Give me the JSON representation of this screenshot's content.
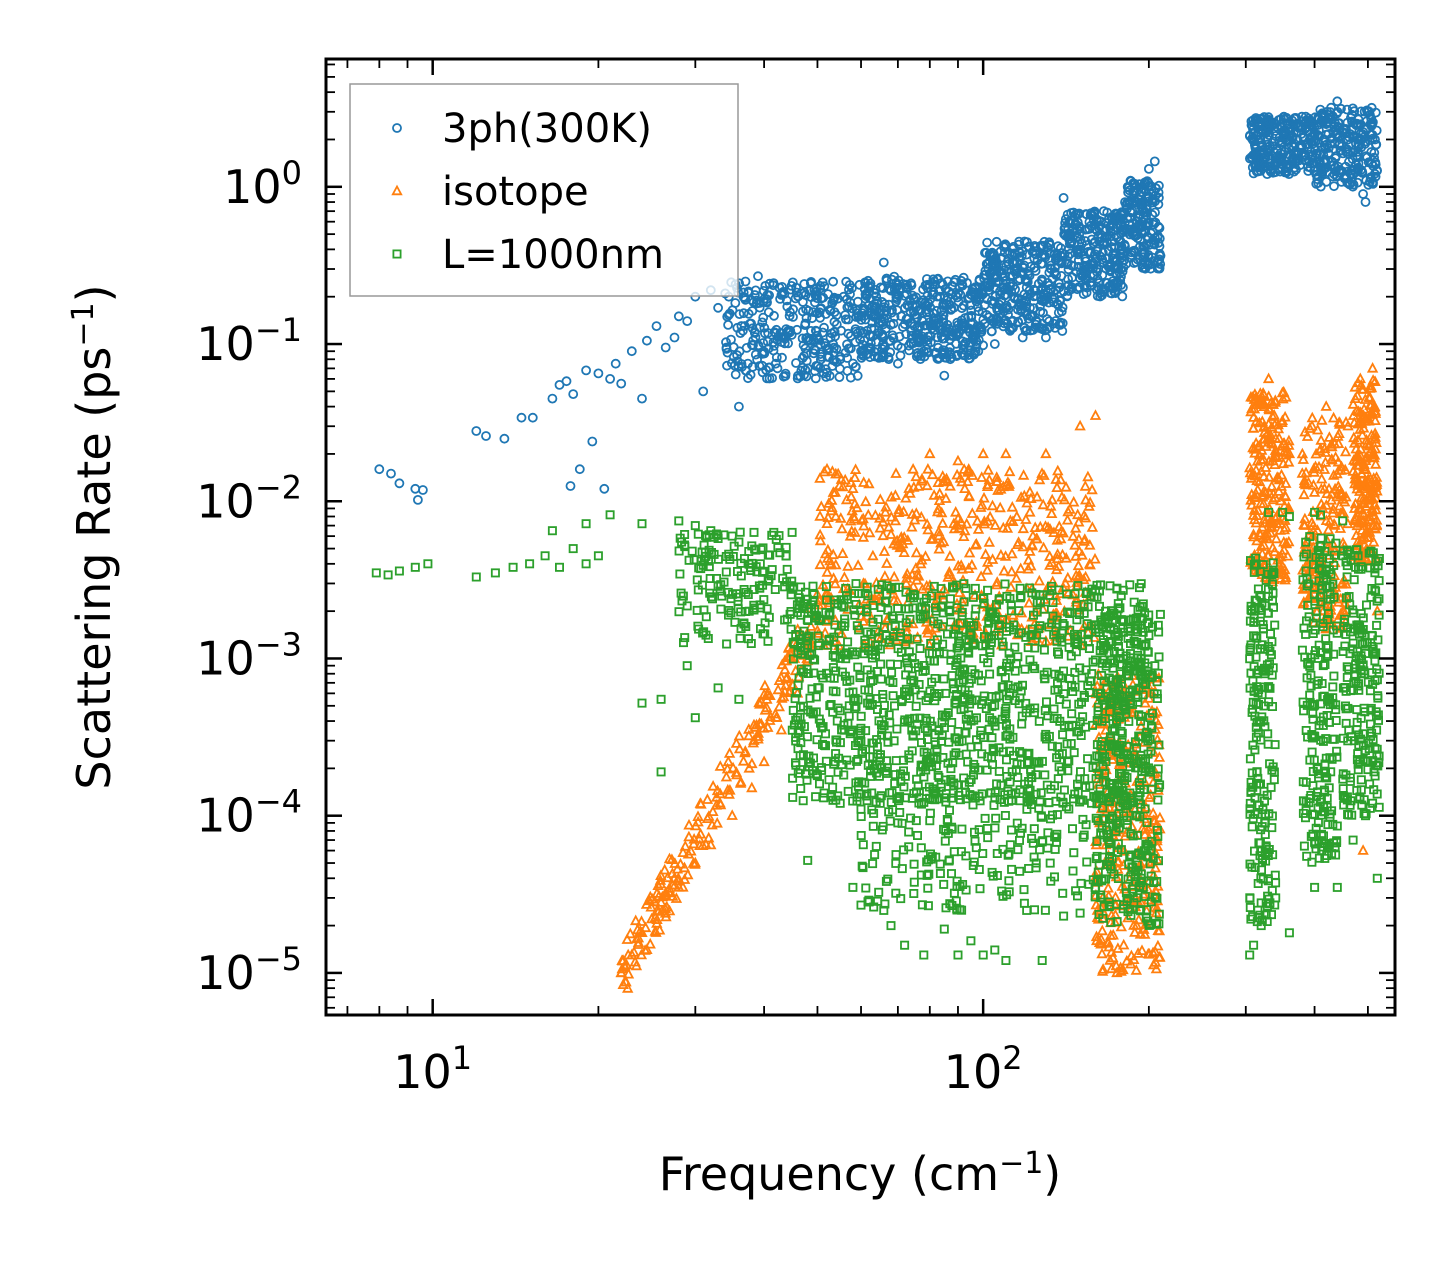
{
  "chart_data": {
    "type": "scatter",
    "title": "",
    "xlabel": {
      "main": "Frequency (cm",
      "sup": "−1",
      "end": ")"
    },
    "ylabel": {
      "main": "Scattering Rate (ps",
      "sup": "−1",
      "end": ")"
    },
    "xscale": "log",
    "yscale": "log",
    "xlim": [
      6.4,
      560
    ],
    "ylim": [
      5.4e-06,
      6.5
    ],
    "xticks": [
      {
        "value": 10,
        "base": "10",
        "exp": "1"
      },
      {
        "value": 100,
        "base": "10",
        "exp": "2"
      }
    ],
    "yticks": [
      {
        "value": 1,
        "base": "10",
        "exp": "0"
      },
      {
        "value": 0.1,
        "base": "10",
        "exp": "−1"
      },
      {
        "value": 0.01,
        "base": "10",
        "exp": "−2"
      },
      {
        "value": 0.001,
        "base": "10",
        "exp": "−3"
      },
      {
        "value": 0.0001,
        "base": "10",
        "exp": "−4"
      },
      {
        "value": 1e-05,
        "base": "10",
        "exp": "−5"
      }
    ],
    "legend_position": "top-left",
    "grid": false,
    "series": [
      {
        "name": "3ph(300K)",
        "marker": "circle",
        "color": "#1f77b4",
        "points": [
          [
            8.0,
            0.016
          ],
          [
            8.4,
            0.015
          ],
          [
            8.7,
            0.013
          ],
          [
            9.3,
            0.012
          ],
          [
            9.6,
            0.0118
          ],
          [
            9.4,
            0.0102
          ],
          [
            12.0,
            0.028
          ],
          [
            12.5,
            0.026
          ],
          [
            13.5,
            0.025
          ],
          [
            14.5,
            0.034
          ],
          [
            15.2,
            0.034
          ],
          [
            16.5,
            0.045
          ],
          [
            17.0,
            0.055
          ],
          [
            17.5,
            0.058
          ],
          [
            18.0,
            0.048
          ],
          [
            17.8,
            0.0125
          ],
          [
            18.5,
            0.016
          ],
          [
            19.5,
            0.024
          ],
          [
            20.5,
            0.012
          ],
          [
            19.0,
            0.068
          ],
          [
            20.0,
            0.065
          ],
          [
            21.0,
            0.06
          ],
          [
            21.5,
            0.075
          ],
          [
            22.0,
            0.056
          ],
          [
            23.0,
            0.09
          ],
          [
            24.0,
            0.045
          ],
          [
            24.5,
            0.105
          ],
          [
            25.5,
            0.13
          ],
          [
            26.5,
            0.095
          ],
          [
            27.5,
            0.11
          ],
          [
            28.0,
            0.15
          ],
          [
            29.0,
            0.14
          ],
          [
            30.0,
            0.2
          ],
          [
            31.0,
            0.05
          ],
          [
            32.0,
            0.22
          ],
          [
            33.0,
            0.17
          ],
          [
            34.0,
            0.21
          ],
          [
            35.5,
            0.24
          ],
          [
            36.0,
            0.04
          ],
          [
            37.0,
            0.25
          ],
          [
            38.0,
            0.19
          ],
          [
            39.0,
            0.27
          ],
          [
            42.0,
            0.075
          ],
          [
            48.0,
            0.07
          ],
          [
            55.0,
            0.08
          ],
          [
            60.0,
            0.09
          ],
          [
            66.0,
            0.33
          ],
          [
            70.0,
            0.075
          ],
          [
            78.0,
            0.09
          ],
          [
            85.0,
            0.063
          ],
          [
            92.0,
            0.085
          ],
          [
            98.0,
            0.09
          ],
          [
            105.0,
            0.1
          ],
          [
            118.0,
            0.11
          ],
          [
            130.0,
            0.11
          ],
          [
            140.0,
            0.85
          ],
          [
            150.0,
            0.4
          ],
          [
            160.0,
            0.35
          ],
          [
            170.0,
            0.55
          ],
          [
            180.0,
            0.55
          ],
          [
            190.0,
            0.6
          ],
          [
            200.0,
            1.3
          ],
          [
            205.0,
            1.45
          ],
          [
            310.0,
            2.0
          ],
          [
            320.0,
            2.3
          ],
          [
            330.0,
            1.7
          ],
          [
            340.0,
            1.4
          ],
          [
            350.0,
            1.9
          ],
          [
            360.0,
            1.6
          ],
          [
            380.0,
            1.8
          ],
          [
            400.0,
            2.2
          ],
          [
            420.0,
            2.5
          ],
          [
            440.0,
            3.5
          ],
          [
            460.0,
            2.0
          ],
          [
            470.0,
            1.2
          ],
          [
            480.0,
            2.0
          ],
          [
            490.0,
            0.9
          ],
          [
            495.0,
            0.8
          ],
          [
            505.0,
            2.5
          ],
          [
            515.0,
            2.0
          ]
        ],
        "bands": [
          {
            "x_range": [
              34,
              60
            ],
            "y_range": [
              0.06,
              0.25
            ],
            "count": 320
          },
          {
            "x_range": [
              60,
              100
            ],
            "y_range": [
              0.08,
              0.27
            ],
            "count": 420
          },
          {
            "x_range": [
              100,
              140
            ],
            "y_range": [
              0.12,
              0.45
            ],
            "count": 320
          },
          {
            "x_range": [
              140,
              180
            ],
            "y_range": [
              0.2,
              0.7
            ],
            "count": 260
          },
          {
            "x_range": [
              180,
              210
            ],
            "y_range": [
              0.3,
              1.1
            ],
            "count": 180
          },
          {
            "x_range": [
              305,
              400
            ],
            "y_range": [
              1.2,
              2.8
            ],
            "count": 260
          },
          {
            "x_range": [
              400,
              520
            ],
            "y_range": [
              1.0,
              3.2
            ],
            "count": 240
          }
        ]
      },
      {
        "name": "isotope",
        "marker": "triangle",
        "color": "#ff7f0e",
        "points": [
          [
            22.0,
            1e-05
          ],
          [
            23.0,
            1.3e-05
          ],
          [
            24.0,
            1.8e-05
          ],
          [
            25.0,
            2.2e-05
          ],
          [
            26.0,
            2.8e-05
          ],
          [
            28.0,
            3.5e-05
          ],
          [
            30.0,
            5e-05
          ],
          [
            32.0,
            6.5e-05
          ],
          [
            35.0,
            0.0001
          ],
          [
            38.0,
            0.00015
          ],
          [
            40.0,
            0.00022
          ],
          [
            43.0,
            0.00035
          ],
          [
            46.0,
            0.0006
          ],
          [
            50.0,
            0.0015
          ],
          [
            54.0,
            0.008
          ],
          [
            58.0,
            0.012
          ],
          [
            65.0,
            0.0025
          ],
          [
            80.0,
            0.02
          ],
          [
            90.0,
            0.018
          ],
          [
            100.0,
            0.02
          ],
          [
            110.0,
            0.02
          ],
          [
            130.0,
            0.02
          ],
          [
            150.0,
            0.03
          ],
          [
            160.0,
            0.035
          ],
          [
            165.0,
            3e-05
          ],
          [
            170.0,
            1.2e-05
          ],
          [
            175.0,
            1e-05
          ],
          [
            180.0,
            1.5e-05
          ],
          [
            190.0,
            2e-05
          ],
          [
            200.0,
            5e-05
          ],
          [
            330.0,
            0.06
          ],
          [
            360.0,
            0.02
          ],
          [
            380.0,
            0.015
          ],
          [
            420.0,
            0.04
          ],
          [
            460.0,
            0.03
          ],
          [
            490.0,
            0.012
          ],
          [
            510.0,
            0.07
          ],
          [
            520.0,
            0.002
          ],
          [
            490.0,
            6e-05
          ]
        ],
        "bands": [
          {
            "x_range": [
              22,
              50
            ],
            "y_range": [
              1e-05,
              0.0018
            ],
            "count": 220,
            "mode": "ramp"
          },
          {
            "x_range": [
              50,
              160
            ],
            "y_range": [
              0.0012,
              0.016
            ],
            "count": 520
          },
          {
            "x_range": [
              160,
              210
            ],
            "y_range": [
              1e-05,
              0.0008
            ],
            "count": 320
          },
          {
            "x_range": [
              305,
              360
            ],
            "y_range": [
              0.003,
              0.05
            ],
            "count": 230
          },
          {
            "x_range": [
              380,
              460
            ],
            "y_range": [
              0.0015,
              0.035
            ],
            "count": 200
          },
          {
            "x_range": [
              470,
              520
            ],
            "y_range": [
              0.004,
              0.06
            ],
            "count": 200
          }
        ]
      },
      {
        "name": "L=1000nm",
        "marker": "square",
        "color": "#2ca02c",
        "points": [
          [
            7.9,
            0.0035
          ],
          [
            8.3,
            0.0034
          ],
          [
            8.7,
            0.0036
          ],
          [
            9.3,
            0.0038
          ],
          [
            9.8,
            0.004
          ],
          [
            12.0,
            0.0033
          ],
          [
            13.0,
            0.0035
          ],
          [
            14.0,
            0.0038
          ],
          [
            15.0,
            0.004
          ],
          [
            16.0,
            0.0045
          ],
          [
            17.0,
            0.0038
          ],
          [
            18.0,
            0.005
          ],
          [
            19.0,
            0.004
          ],
          [
            20.0,
            0.0045
          ],
          [
            16.5,
            0.0065
          ],
          [
            19.0,
            0.0072
          ],
          [
            21.0,
            0.0082
          ],
          [
            24.0,
            0.0072
          ],
          [
            28.0,
            0.0075
          ],
          [
            30.0,
            0.007
          ],
          [
            32.0,
            0.0065
          ],
          [
            33.0,
            0.0058
          ],
          [
            35.0,
            0.006
          ],
          [
            36.0,
            0.0055
          ],
          [
            38.0,
            0.0052
          ],
          [
            24.0,
            0.00052
          ],
          [
            26.0,
            0.00055
          ],
          [
            29.0,
            0.0009
          ],
          [
            33.0,
            0.00065
          ],
          [
            36.0,
            0.00055
          ],
          [
            26.0,
            0.00019
          ],
          [
            30.0,
            0.00042
          ],
          [
            45.0,
            0.00035
          ],
          [
            50.0,
            0.00018
          ],
          [
            55.0,
            0.00012
          ],
          [
            60.0,
            0.00011
          ],
          [
            65.0,
            0.00012
          ],
          [
            70.0,
            9e-05
          ],
          [
            48.0,
            5.2e-05
          ],
          [
            58.0,
            3.5e-05
          ],
          [
            60.0,
            2.7e-05
          ],
          [
            62.0,
            2.9e-05
          ],
          [
            66.0,
            2.5e-05
          ],
          [
            68.0,
            2e-05
          ],
          [
            72.0,
            1.5e-05
          ],
          [
            78.0,
            1.3e-05
          ],
          [
            85.0,
            1.9e-05
          ],
          [
            90.0,
            1.3e-05
          ],
          [
            95.0,
            1.6e-05
          ],
          [
            100.0,
            1.3e-05
          ],
          [
            105.0,
            1.4e-05
          ],
          [
            110.0,
            1.2e-05
          ],
          [
            120.0,
            2.5e-05
          ],
          [
            128.0,
            1.2e-05
          ],
          [
            140.0,
            2.3e-05
          ],
          [
            150.0,
            2.4e-05
          ],
          [
            160.0,
            0.0027
          ],
          [
            170.0,
            0.0029
          ],
          [
            175.0,
            0.0028
          ],
          [
            190.0,
            0.0018
          ],
          [
            200.0,
            0.0014
          ],
          [
            205.0,
            0.0009
          ],
          [
            305.0,
            1.3e-05
          ],
          [
            310.0,
            1.5e-05
          ],
          [
            320.0,
            2e-05
          ],
          [
            340.0,
            3e-05
          ],
          [
            360.0,
            1.8e-05
          ],
          [
            400.0,
            3.5e-05
          ],
          [
            440.0,
            3.5e-05
          ],
          [
            470.0,
            7e-05
          ],
          [
            495.0,
            0.0001
          ],
          [
            510.0,
            0.00012
          ],
          [
            520.0,
            4e-05
          ],
          [
            330.0,
            0.0085
          ],
          [
            350.0,
            0.0085
          ],
          [
            360.0,
            0.008
          ],
          [
            400.0,
            0.0085
          ],
          [
            410.0,
            0.0082
          ],
          [
            450.0,
            0.0075
          ],
          [
            480.0,
            0.0045
          ]
        ],
        "bands": [
          {
            "x_range": [
              28,
              45
            ],
            "y_range": [
              0.0012,
              0.0065
            ],
            "count": 160
          },
          {
            "x_range": [
              45,
              200
            ],
            "y_range": [
              0.00012,
              0.003
            ],
            "count": 1200
          },
          {
            "x_range": [
              60,
              200
            ],
            "y_range": [
              2.5e-05,
              0.00015
            ],
            "count": 260
          },
          {
            "x_range": [
              160,
              210
            ],
            "y_range": [
              2e-05,
              0.002
            ],
            "count": 260
          },
          {
            "x_range": [
              305,
              340
            ],
            "y_range": [
              2e-05,
              0.005
            ],
            "count": 200
          },
          {
            "x_range": [
              380,
              440
            ],
            "y_range": [
              5e-05,
              0.006
            ],
            "count": 220
          },
          {
            "x_range": [
              450,
              525
            ],
            "y_range": [
              0.0001,
              0.005
            ],
            "count": 200
          }
        ]
      }
    ]
  }
}
